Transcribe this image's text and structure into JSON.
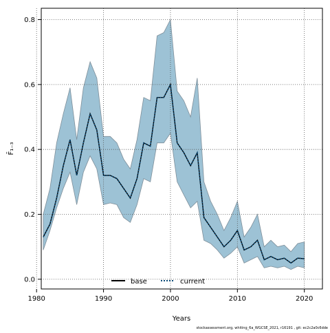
{
  "colors": {
    "band": "#9dc2d5",
    "band_edge": "#7e8e99",
    "line": "#000000",
    "current": "#0a4b78",
    "grid": "#555555"
  },
  "chart_data": {
    "type": "line",
    "title": "",
    "xlabel": "Years",
    "ylabel": "F̄₁₋₃",
    "xlim": [
      1980.7,
      2022.7
    ],
    "ylim": [
      -0.03,
      0.835
    ],
    "x_ticks": [
      1980,
      1990,
      2000,
      2010,
      2020
    ],
    "y_ticks": [
      0.0,
      0.2,
      0.4,
      0.6,
      0.8
    ],
    "x_tick_labels": [
      "1980",
      "1990",
      "2000",
      "2010",
      "2020"
    ],
    "y_tick_labels": [
      "0.0",
      "0.2",
      "0.4",
      "0.6",
      "0.8"
    ],
    "grid": true,
    "legend_position": "bottom-center",
    "x": [
      1981,
      1982,
      1983,
      1984,
      1985,
      1986,
      1987,
      1988,
      1989,
      1990,
      1991,
      1992,
      1993,
      1994,
      1995,
      1996,
      1997,
      1998,
      1999,
      2000,
      2001,
      2002,
      2003,
      2004,
      2005,
      2006,
      2007,
      2008,
      2009,
      2010,
      2011,
      2012,
      2013,
      2014,
      2015,
      2016,
      2017,
      2018,
      2019,
      2020
    ],
    "series": [
      {
        "name": "base",
        "style": "solid",
        "values": [
          0.13,
          0.17,
          0.25,
          0.35,
          0.43,
          0.32,
          0.42,
          0.51,
          0.46,
          0.32,
          0.32,
          0.31,
          0.28,
          0.25,
          0.31,
          0.42,
          0.41,
          0.56,
          0.56,
          0.6,
          0.42,
          0.39,
          0.35,
          0.39,
          0.19,
          0.16,
          0.13,
          0.1,
          0.12,
          0.15,
          0.09,
          0.1,
          0.12,
          0.06,
          0.07,
          0.06,
          0.065,
          0.05,
          0.065,
          0.063
        ]
      },
      {
        "name": "current",
        "style": "dotted",
        "values": [
          0.13,
          0.17,
          0.25,
          0.35,
          0.43,
          0.32,
          0.42,
          0.51,
          0.46,
          0.32,
          0.32,
          0.31,
          0.28,
          0.25,
          0.31,
          0.42,
          0.41,
          0.56,
          0.56,
          0.6,
          0.42,
          0.39,
          0.35,
          0.39,
          0.19,
          0.16,
          0.13,
          0.1,
          0.12,
          0.15,
          0.09,
          0.1,
          0.12,
          0.06,
          0.07,
          0.06,
          0.065,
          0.05,
          0.065,
          0.063
        ]
      }
    ],
    "band": {
      "lower": [
        0.09,
        0.15,
        0.22,
        0.28,
        0.33,
        0.23,
        0.33,
        0.38,
        0.34,
        0.23,
        0.235,
        0.23,
        0.19,
        0.175,
        0.23,
        0.31,
        0.3,
        0.42,
        0.42,
        0.45,
        0.3,
        0.26,
        0.22,
        0.24,
        0.12,
        0.11,
        0.09,
        0.065,
        0.08,
        0.1,
        0.05,
        0.06,
        0.07,
        0.035,
        0.04,
        0.035,
        0.04,
        0.03,
        0.04,
        0.035
      ],
      "upper": [
        0.2,
        0.28,
        0.42,
        0.51,
        0.59,
        0.43,
        0.59,
        0.67,
        0.62,
        0.44,
        0.44,
        0.42,
        0.37,
        0.34,
        0.43,
        0.56,
        0.55,
        0.75,
        0.76,
        0.8,
        0.58,
        0.55,
        0.5,
        0.62,
        0.3,
        0.24,
        0.2,
        0.15,
        0.19,
        0.24,
        0.13,
        0.16,
        0.2,
        0.1,
        0.12,
        0.1,
        0.105,
        0.085,
        0.11,
        0.115
      ]
    }
  },
  "footer_note": "stockassessment.org, whiting_6a_WGCSE_2021, r16191 , git: ec2c2a0c6dde"
}
